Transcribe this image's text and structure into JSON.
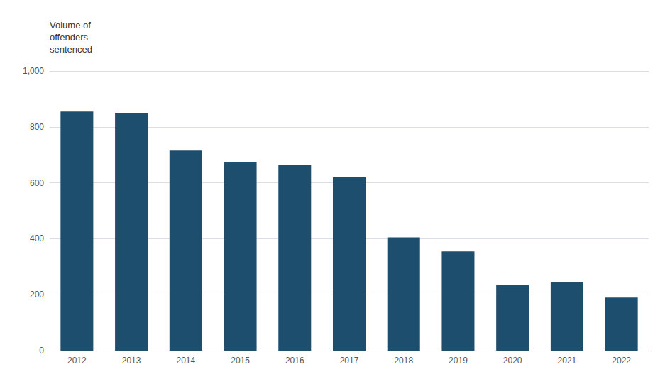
{
  "chart_data": {
    "type": "bar",
    "ylabel": "Volume of\noffenders\nsentenced",
    "categories": [
      "2012",
      "2013",
      "2014",
      "2015",
      "2016",
      "2017",
      "2018",
      "2019",
      "2020",
      "2021",
      "2022"
    ],
    "values": [
      855,
      850,
      715,
      675,
      665,
      620,
      405,
      355,
      235,
      245,
      190
    ],
    "color": "#1e4e6e",
    "ylim": [
      0,
      1000
    ],
    "yticks": [
      0,
      200,
      400,
      600,
      800,
      {
        "value": 1000,
        "label": "1,000"
      }
    ],
    "grid": true
  }
}
